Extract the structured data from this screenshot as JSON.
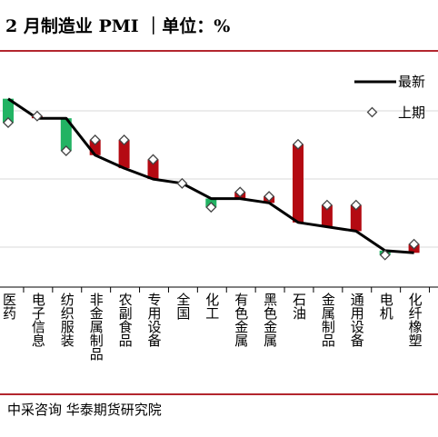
{
  "header": {
    "title": "2 月制造业 PMI ｜单位：%"
  },
  "footer": {
    "source": "中采咨询   华泰期货研究院"
  },
  "colors": {
    "increase": "#22b363",
    "decrease": "#b40a12",
    "line": "#000000",
    "rule": "#b3262e",
    "grid": "#d9d9d9"
  },
  "chart_data": {
    "type": "line",
    "title": "2 月制造业 PMI",
    "unit": "%",
    "legend_position": "top-right",
    "grid": true,
    "categories": [
      "医药",
      "电子信息",
      "纺织服装",
      "非金属制品",
      "农副食品",
      "专用设备",
      "全国",
      "化工",
      "有色金属",
      "黑色金属",
      "石油",
      "金属制品",
      "通用设备",
      "电机",
      "化纤橡塑"
    ],
    "series": [
      {
        "name": "最新",
        "kind": "line",
        "values": [
          51.8,
          50.9,
          50.9,
          49.2,
          48.6,
          48.1,
          47.9,
          47.2,
          47.2,
          47.0,
          46.1,
          45.9,
          45.7,
          44.8,
          44.7
        ]
      },
      {
        "name": "上期",
        "kind": "marker",
        "values": [
          50.7,
          51.0,
          49.4,
          49.9,
          49.9,
          49.0,
          47.9,
          46.8,
          47.5,
          47.3,
          49.7,
          46.9,
          46.9,
          44.6,
          45.1
        ]
      }
    ]
  }
}
